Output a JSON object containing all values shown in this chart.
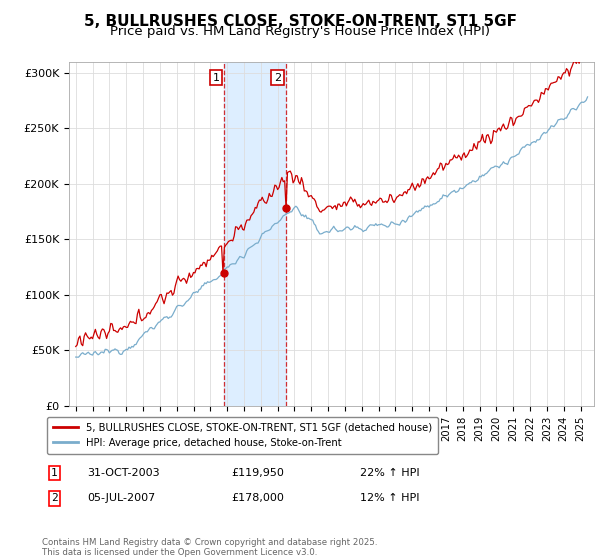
{
  "title": "5, BULLRUSHES CLOSE, STOKE-ON-TRENT, ST1 5GF",
  "subtitle": "Price paid vs. HM Land Registry's House Price Index (HPI)",
  "ylim": [
    0,
    310000
  ],
  "yticks": [
    0,
    50000,
    100000,
    150000,
    200000,
    250000,
    300000
  ],
  "ytick_labels": [
    "£0",
    "£50K",
    "£100K",
    "£150K",
    "£200K",
    "£250K",
    "£300K"
  ],
  "line1_color": "#cc0000",
  "line2_color": "#7aadcc",
  "shade_color": "#ddeeff",
  "point1_year": 2003.83,
  "point1_price": 119950,
  "point2_year": 2007.51,
  "point2_price": 178000,
  "legend_label1": "5, BULLRUSHES CLOSE, STOKE-ON-TRENT, ST1 5GF (detached house)",
  "legend_label2": "HPI: Average price, detached house, Stoke-on-Trent",
  "annotation1_date": "31-OCT-2003",
  "annotation1_price": "£119,950",
  "annotation1_hpi": "22% ↑ HPI",
  "annotation2_date": "05-JUL-2007",
  "annotation2_price": "£178,000",
  "annotation2_hpi": "12% ↑ HPI",
  "footer": "Contains HM Land Registry data © Crown copyright and database right 2025.\nThis data is licensed under the Open Government Licence v3.0."
}
